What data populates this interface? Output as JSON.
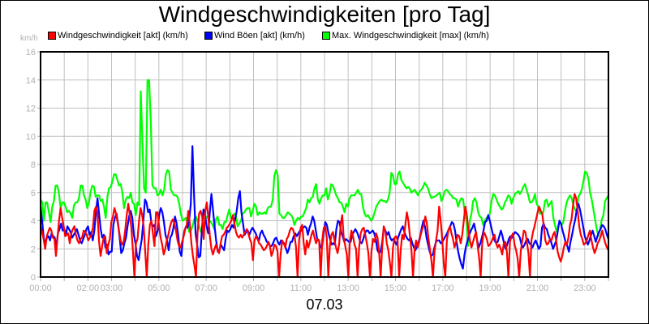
{
  "window": {
    "title": "Windgeschwindigkeiten [pro Tag]",
    "date_label": "07.03",
    "y_unit": "km/h"
  },
  "legend": [
    {
      "label": "Windgeschwindigkeit [akt] (km/h)",
      "color": "#ff0000"
    },
    {
      "label": "Wind Böen [akt] (km/h)",
      "color": "#0000ff"
    },
    {
      "label": "Max. Windgeschwindigkeit [max] (km/h)",
      "color": "#00ff00"
    }
  ],
  "chart_data": {
    "type": "line",
    "title": "Windgeschwindigkeiten [pro Tag]",
    "xlabel": "07.03",
    "ylabel": "km/h",
    "ylim": [
      0,
      16
    ],
    "xlim_hours": [
      0,
      24
    ],
    "grid": true,
    "legend_position": "top",
    "y_ticks": [
      "0",
      "2",
      "4",
      "6",
      "8",
      "10",
      "12",
      "14",
      "16"
    ],
    "x_tick_labels": [
      {
        "hour": 0,
        "label": "00:00"
      },
      {
        "hour": 2,
        "label": "02:00"
      },
      {
        "hour": 3,
        "label": "03:00"
      },
      {
        "hour": 5,
        "label": "05:00"
      },
      {
        "hour": 7,
        "label": "07:00"
      },
      {
        "hour": 9,
        "label": "09:00"
      },
      {
        "hour": 11,
        "label": "11:00"
      },
      {
        "hour": 13,
        "label": "13:00"
      },
      {
        "hour": 15,
        "label": "15:00"
      },
      {
        "hour": 17,
        "label": "17:00"
      },
      {
        "hour": 19,
        "label": "19:00"
      },
      {
        "hour": 21,
        "label": "21:00"
      },
      {
        "hour": 23,
        "label": "23:00"
      }
    ],
    "x_interval_minutes": 10,
    "series": [
      {
        "name": "Max. Windgeschwindigkeit [max] (km/h)",
        "color": "#00ff00",
        "values": [
          5.5,
          5.3,
          4.0,
          5.3,
          5.3,
          4.6,
          3.9,
          5.0,
          5.4,
          6.5,
          6.5,
          6.0,
          4.9,
          5.3,
          5.3,
          5.0,
          4.6,
          4.7,
          4.5,
          4.2,
          5.1,
          5.3,
          5.3,
          5.6,
          6.5,
          6.5,
          5.8,
          5.5,
          4.9,
          5.3,
          6.1,
          6.5,
          6.4,
          5.7,
          5.8,
          5.8,
          5.4,
          5.5,
          5.0,
          4.2,
          5.7,
          6.3,
          6.4,
          6.8,
          7.3,
          7.3,
          6.9,
          6.5,
          6.6,
          6.0,
          4.9,
          5.5,
          5.7,
          5.6,
          6.0,
          5.3,
          5.2,
          4.4,
          5.3,
          5.1,
          13.2,
          9.5,
          6.3,
          6.0,
          14.0,
          14.0,
          11.0,
          6.5,
          6.3,
          6.3,
          5.8,
          5.9,
          6.2,
          5.8,
          6.2,
          7.3,
          7.6,
          7.5,
          6.2,
          6.0,
          5.8,
          5.8,
          5.7,
          5.2,
          4.5,
          4.0,
          4.1,
          4.2,
          3.8,
          3.2,
          3.3,
          3.6,
          4.1,
          4.3,
          4.0,
          3.6,
          3.2,
          3.2,
          3.7,
          4.2,
          4.3,
          4.0,
          3.9,
          3.7,
          3.4,
          4.1,
          4.3,
          3.7,
          3.7,
          3.4,
          3.9,
          3.9,
          4.4,
          4.8,
          4.2,
          4.3,
          4.5,
          4.3,
          3.6,
          3.8,
          4.0,
          4.5,
          4.6,
          4.8,
          4.9,
          4.9,
          4.3,
          4.7,
          5.2,
          5.0,
          4.4,
          4.6,
          4.5,
          4.5,
          4.6,
          4.5,
          4.9,
          5.0,
          5.0,
          5.5,
          7.2,
          7.6,
          7.2,
          4.5,
          4.4,
          4.2,
          4.2,
          4.4,
          4.6,
          4.5,
          4.4,
          4.2,
          3.7,
          4.0,
          4.2,
          4.1,
          4.3,
          4.3,
          4.6,
          4.9,
          5.5,
          5.3,
          5.6,
          5.7,
          6.3,
          6.6,
          5.5,
          5.2,
          5.6,
          5.8,
          5.8,
          6.3,
          5.5,
          5.9,
          6.6,
          6.5,
          6.2,
          5.8,
          5.6,
          5.3,
          5.3,
          5.0,
          4.6,
          5.2,
          5.0,
          5.6,
          5.8,
          5.8,
          5.8,
          6.0,
          6.2,
          5.9,
          5.9,
          5.0,
          4.5,
          4.3,
          4.4,
          4.2,
          4.0,
          4.2,
          4.6,
          5.0,
          5.2,
          5.4,
          5.5,
          5.4,
          5.4,
          5.3,
          5.5,
          6.0,
          7.4,
          7.2,
          6.6,
          6.6,
          7.3,
          7.5,
          6.9,
          6.7,
          6.5,
          6.3,
          6.4,
          6.3,
          6.0,
          6.1,
          6.2,
          6.0,
          5.8,
          6.1,
          6.2,
          6.4,
          6.7,
          6.5,
          6.3,
          5.9,
          5.6,
          5.7,
          5.7,
          5.8,
          5.9,
          6.0,
          5.4,
          5.7,
          6.1,
          6.2,
          6.1,
          5.9,
          5.8,
          5.6,
          5.6,
          5.5,
          5.0,
          5.4,
          5.6,
          5.5,
          4.5,
          4.0,
          2.2,
          4.0,
          4.5,
          5.4,
          5.6,
          5.3,
          4.6,
          4.3,
          4.2,
          3.7,
          4.0,
          4.2,
          4.3,
          4.5,
          5.4,
          5.9,
          5.8,
          5.5,
          5.2,
          5.0,
          4.8,
          4.9,
          5.3,
          5.5,
          5.8,
          5.7,
          5.2,
          5.6,
          5.9,
          6.0,
          6.1,
          5.9,
          6.1,
          6.4,
          6.6,
          6.2,
          5.8,
          5.3,
          5.3,
          5.5,
          5.9,
          5.2,
          5.0,
          4.5,
          4.5,
          4.6,
          5.4,
          5.5,
          5.0,
          5.2,
          5.4,
          4.2,
          3.7,
          3.2,
          3.7,
          3.9,
          3.7,
          3.9,
          4.7,
          5.3,
          5.6,
          5.8,
          5.6,
          5.1,
          4.8,
          4.6,
          5.7,
          5.9,
          6.2,
          6.8,
          7.5,
          7.4,
          7.0,
          6.0,
          5.5,
          4.8,
          4.1,
          3.4,
          2.9,
          3.4,
          4.1,
          4.4,
          5.4,
          5.6,
          5.8
        ]
      },
      {
        "name": "Wind Böen [akt] (km/h)",
        "color": "#0000ff",
        "values": [
          5.0,
          4.0,
          2.8,
          2.4,
          2.8,
          2.9,
          2.6,
          3.1,
          2.9,
          2.8,
          2.2,
          3.1,
          3.4,
          3.8,
          3.3,
          3.4,
          3.0,
          3.6,
          3.4,
          3.2,
          2.8,
          3.0,
          3.2,
          3.4,
          3.0,
          2.6,
          2.4,
          2.7,
          3.0,
          3.4,
          3.6,
          3.0,
          3.2,
          2.6,
          3.3,
          4.6,
          5.6,
          4.5,
          3.4,
          2.8,
          3.0,
          2.1,
          2.3,
          1.6,
          1.8,
          1.8,
          3.7,
          4.2,
          4.5,
          3.8,
          2.8,
          1.7,
          1.9,
          2.4,
          2.8,
          3.6,
          4.3,
          4.7,
          4.2,
          3.0,
          2.4,
          1.5,
          1.2,
          2.0,
          2.7,
          4.0,
          5.5,
          5.3,
          4.6,
          4.8,
          3.9,
          3.6,
          3.7,
          2.9,
          3.3,
          4.4,
          4.9,
          4.6,
          3.9,
          3.0,
          2.6,
          1.9,
          2.8,
          3.0,
          3.5,
          4.3,
          3.8,
          3.0,
          1.8,
          1.5,
          2.7,
          3.3,
          3.6,
          3.5,
          4.1,
          5.2,
          9.3,
          6.0,
          3.1,
          2.3,
          1.4,
          1.5,
          3.4,
          4.8,
          4.4,
          3.6,
          3.1,
          4.6,
          5.9,
          4.8,
          3.6,
          2.6,
          1.8,
          1.9,
          2.3,
          2.1,
          1.9,
          2.7,
          3.3,
          3.2,
          3.4,
          3.7,
          3.5,
          4.1,
          4.7,
          5.6,
          6.1,
          4.6,
          3.8,
          3.0,
          3.2,
          3.3,
          3.0,
          3.3,
          3.5,
          3.3,
          3.1,
          2.8,
          2.6,
          3.1,
          3.3,
          3.0,
          2.8,
          2.5,
          2.5,
          2.2,
          2.2,
          2.4,
          2.7,
          2.8,
          2.5,
          2.3,
          2.6,
          2.4,
          2.4,
          2.1,
          1.7,
          2.0,
          2.5,
          2.5,
          2.9,
          3.1,
          2.9,
          3.1,
          3.3,
          3.3,
          3.5,
          3.6,
          3.5,
          3.0,
          3.5,
          3.8,
          4.3,
          4.0,
          3.3,
          2.6,
          2.6,
          2.1,
          2.2,
          3.2,
          3.9,
          3.7,
          3.1,
          2.7,
          2.3,
          2.4,
          2.3,
          3.4,
          4.0,
          3.9,
          3.2,
          2.9,
          2.5,
          2.7,
          2.6,
          2.5,
          2.5,
          3.0,
          3.2,
          3.4,
          3.2,
          2.9,
          2.5,
          2.4,
          2.7,
          3.1,
          3.3,
          3.3,
          3.1,
          3.2,
          3.3,
          3.1,
          2.6,
          1.9,
          1.7,
          1.8,
          2.5,
          3.5,
          3.3,
          3.0,
          3.2,
          2.8,
          2.6,
          2.7,
          2.5,
          2.3,
          2.8,
          3.1,
          3.4,
          3.6,
          3.2,
          2.9,
          2.7,
          2.6,
          2.8,
          2.4,
          2.1,
          1.9,
          2.2,
          2.5,
          2.9,
          3.5,
          4.0,
          3.6,
          2.8,
          2.3,
          1.8,
          1.5,
          1.6,
          2.1,
          2.5,
          2.6,
          2.6,
          2.4,
          2.5,
          2.7,
          2.9,
          3.1,
          3.4,
          3.6,
          3.9,
          3.8,
          3.3,
          2.5,
          1.8,
          1.3,
          0.9,
          0.6,
          1.6,
          2.2,
          2.6,
          3.0,
          3.3,
          3.5,
          3.8,
          3.3,
          2.6,
          2.1,
          2.4,
          2.8,
          3.3,
          3.9,
          4.0,
          4.4,
          4.0,
          3.5,
          3.0,
          2.6,
          2.4,
          2.5,
          2.9,
          3.3,
          2.9,
          2.4,
          2.0,
          2.3,
          2.7,
          2.9,
          2.8,
          3.0,
          3.2,
          3.1,
          3.0,
          2.8,
          2.3,
          2.1,
          2.3,
          2.6,
          2.7,
          2.4,
          2.3,
          2.1,
          2.4,
          2.6,
          2.3,
          2.0,
          2.2,
          3.5,
          3.8,
          3.5,
          3.4,
          3.0,
          2.7,
          2.4,
          2.0,
          2.3,
          2.6,
          3.3,
          4.0,
          3.8,
          3.3,
          2.9,
          2.4,
          2.2,
          1.8,
          2.5,
          3.0,
          3.6,
          4.1,
          4.8,
          5.2,
          4.8,
          4.2,
          3.6,
          2.9,
          2.6,
          2.3,
          2.6,
          3.0,
          3.3,
          2.9,
          2.5,
          2.9,
          3.2,
          3.4,
          3.7,
          3.6,
          3.4,
          3.0,
          2.7
        ]
      },
      {
        "name": "Windgeschwindigkeit [akt] (km/h)",
        "color": "#ff0000",
        "values": [
          3.6,
          3.2,
          2.7,
          2.0,
          2.9,
          3.2,
          3.5,
          3.3,
          2.8,
          2.7,
          1.5,
          2.8,
          4.0,
          4.9,
          4.2,
          3.6,
          2.9,
          3.0,
          3.1,
          2.4,
          3.1,
          3.4,
          3.6,
          3.0,
          2.6,
          2.4,
          2.7,
          2.8,
          3.3,
          3.2,
          3.0,
          2.6,
          2.8,
          3.0,
          3.5,
          4.7,
          5.0,
          4.5,
          2.5,
          1.5,
          2.2,
          2.8,
          2.9,
          1.7,
          2.3,
          2.7,
          3.9,
          4.3,
          4.9,
          4.5,
          3.9,
          3.3,
          2.6,
          2.3,
          2.5,
          3.3,
          4.4,
          5.2,
          4.4,
          3.5,
          1.9,
          0.0,
          2.4,
          2.7,
          4.0,
          4.9,
          4.4,
          3.6,
          1.8,
          0.0,
          2.3,
          3.7,
          4.0,
          3.1,
          2.2,
          4.6,
          4.6,
          3.6,
          2.8,
          2.3,
          1.6,
          2.0,
          2.6,
          3.0,
          3.5,
          3.9,
          4.1,
          3.8,
          3.3,
          2.6,
          2.2,
          2.1,
          2.5,
          2.9,
          3.4,
          3.7,
          4.7,
          3.8,
          2.4,
          1.5,
          0.8,
          0.0,
          3.1,
          4.5,
          4.7,
          4.3,
          2.7,
          4.7,
          5.3,
          4.2,
          2.9,
          2.0,
          1.6,
          2.0,
          2.3,
          1.9,
          1.7,
          2.4,
          2.9,
          3.0,
          3.2,
          3.5,
          3.6,
          3.8,
          4.0,
          4.4,
          3.8,
          3.2,
          2.9,
          2.8,
          3.0,
          2.8,
          3.0,
          3.2,
          3.4,
          3.1,
          2.7,
          2.4,
          1.2,
          2.6,
          2.9,
          2.7,
          2.4,
          2.3,
          2.1,
          1.9,
          2.0,
          2.2,
          2.5,
          2.2,
          1.5,
          1.8,
          2.3,
          2.2,
          1.8,
          0.0,
          1.6,
          2.6,
          2.4,
          2.1,
          2.7,
          2.9,
          3.3,
          3.5,
          3.4,
          3.0,
          2.1,
          0.0,
          2.6,
          3.5,
          3.7,
          2.4,
          1.6,
          2.6,
          2.1,
          2.5,
          3.0,
          3.3,
          2.8,
          2.4,
          2.7,
          2.6,
          0.0,
          2.6,
          3.5,
          3.6,
          2.8,
          0.0,
          2.2,
          3.0,
          3.2,
          2.6,
          2.1,
          1.7,
          2.3,
          3.7,
          4.4,
          2.8,
          2.2,
          1.6,
          0.0,
          2.6,
          3.3,
          2.9,
          2.3,
          2.0,
          0.0,
          2.1,
          3.1,
          3.4,
          3.5,
          3.0,
          2.4,
          1.7,
          0.0,
          1.8,
          2.7,
          2.5,
          3.1,
          2.8,
          1.8,
          0.0,
          2.1,
          3.6,
          3.3,
          2.4,
          1.9,
          1.0,
          0.0,
          2.1,
          2.8,
          2.9,
          2.6,
          0.0,
          1.9,
          3.0,
          2.7,
          3.7,
          4.6,
          4.0,
          2.9,
          1.9,
          0.0,
          1.9,
          2.6,
          2.1,
          2.5,
          3.0,
          3.4,
          3.7,
          4.3,
          3.8,
          2.8,
          2.0,
          1.2,
          0.0,
          1.8,
          2.6,
          3.3,
          5.0,
          4.0,
          2.7,
          1.0,
          0.0,
          2.6,
          3.3,
          3.6,
          3.1,
          2.7,
          2.1,
          2.5,
          3.0,
          2.9,
          2.4,
          3.0,
          4.0,
          5.0,
          4.4,
          3.3,
          2.6,
          2.1,
          2.5,
          2.9,
          3.2,
          2.2,
          1.3,
          0.0,
          2.4,
          3.2,
          3.0,
          2.7,
          2.2,
          2.3,
          2.5,
          2.8,
          3.0,
          2.4,
          2.1,
          2.3,
          2.0,
          1.6,
          2.4,
          2.5,
          1.8,
          0.0,
          2.5,
          2.9,
          3.1,
          2.3,
          1.9,
          1.3,
          0.0,
          1.8,
          2.6,
          3.3,
          3.2,
          2.5,
          1.7,
          0.0,
          2.6,
          3.2,
          3.6,
          4.1,
          4.6,
          5.0,
          4.7,
          4.5,
          3.6,
          2.6,
          2.3,
          2.4,
          2.7,
          2.6,
          3.0,
          3.2,
          2.6,
          1.8,
          1.4,
          1.1,
          1.5,
          2.1,
          2.5,
          2.3,
          2.8,
          3.7,
          4.1,
          5.1,
          5.9,
          5.6,
          4.7,
          3.6,
          3.0,
          2.7,
          2.3,
          2.4,
          2.6,
          3.0,
          3.3,
          2.6,
          2.1,
          1.7,
          2.0,
          2.4,
          2.6,
          2.9,
          3.3,
          2.8,
          2.4,
          2.1,
          1.9
        ]
      }
    ]
  }
}
